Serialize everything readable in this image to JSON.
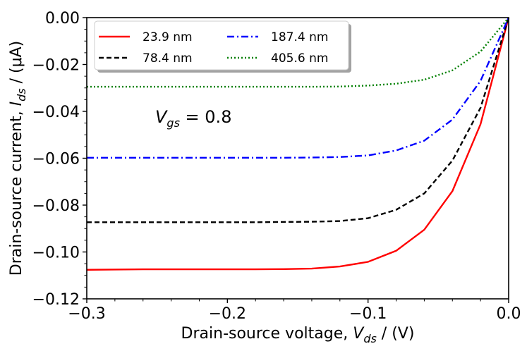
{
  "chart_data": {
    "type": "line",
    "title": "",
    "xlabel": {
      "prefix": "Drain-source voltage, ",
      "sym": "V",
      "sub": "ds",
      "suffix": " / (V)"
    },
    "ylabel": {
      "prefix": "Drain-source current, ",
      "sym": "I",
      "sub": "ds",
      "suffix": " / (μA)"
    },
    "xlim": [
      -0.3,
      0.0
    ],
    "ylim": [
      -0.12,
      0.0
    ],
    "xticks": [
      -0.3,
      -0.2,
      -0.1,
      0.0
    ],
    "xtick_labels": [
      "−0.3",
      "−0.2",
      "−0.1",
      "0.0"
    ],
    "yticks": [
      0.0,
      -0.02,
      -0.04,
      -0.06,
      -0.08,
      -0.1,
      -0.12
    ],
    "ytick_labels": [
      "0.00",
      "−0.02",
      "−0.04",
      "−0.06",
      "−0.08",
      "−0.10",
      "−0.12"
    ],
    "grid": false,
    "legend_position": "top-left",
    "annotation": {
      "sym": "V",
      "sub": "gs",
      "text": " = 0.8"
    },
    "x": [
      -0.3,
      -0.28,
      -0.26,
      -0.24,
      -0.22,
      -0.2,
      -0.18,
      -0.16,
      -0.14,
      -0.12,
      -0.1,
      -0.08,
      -0.06,
      -0.04,
      -0.02,
      0.0
    ],
    "series": [
      {
        "name": "23.9 nm",
        "color": "#ff0000",
        "dash": "solid",
        "values": [
          -0.1076,
          -0.1075,
          -0.1074,
          -0.1074,
          -0.1074,
          -0.1074,
          -0.1074,
          -0.1073,
          -0.1071,
          -0.1062,
          -0.1042,
          -0.0995,
          -0.0905,
          -0.074,
          -0.0455,
          0.0
        ]
      },
      {
        "name": "78.4 nm",
        "color": "#000000",
        "dash": "dashed",
        "values": [
          -0.0873,
          -0.0873,
          -0.0873,
          -0.0873,
          -0.0873,
          -0.0873,
          -0.0873,
          -0.0872,
          -0.0871,
          -0.0868,
          -0.0856,
          -0.082,
          -0.075,
          -0.061,
          -0.0385,
          0.0
        ]
      },
      {
        "name": "187.4 nm",
        "color": "#0000ff",
        "dash": "dashdot",
        "values": [
          -0.0598,
          -0.0598,
          -0.0598,
          -0.0598,
          -0.0598,
          -0.0598,
          -0.0598,
          -0.0598,
          -0.0597,
          -0.0595,
          -0.0588,
          -0.0567,
          -0.0525,
          -0.0435,
          -0.027,
          0.0
        ]
      },
      {
        "name": "405.6 nm",
        "color": "#008000",
        "dash": "dotted",
        "values": [
          -0.0295,
          -0.0295,
          -0.0295,
          -0.0295,
          -0.0295,
          -0.0295,
          -0.0295,
          -0.0295,
          -0.0295,
          -0.0294,
          -0.029,
          -0.0282,
          -0.0265,
          -0.0225,
          -0.0145,
          0.0
        ]
      }
    ]
  }
}
